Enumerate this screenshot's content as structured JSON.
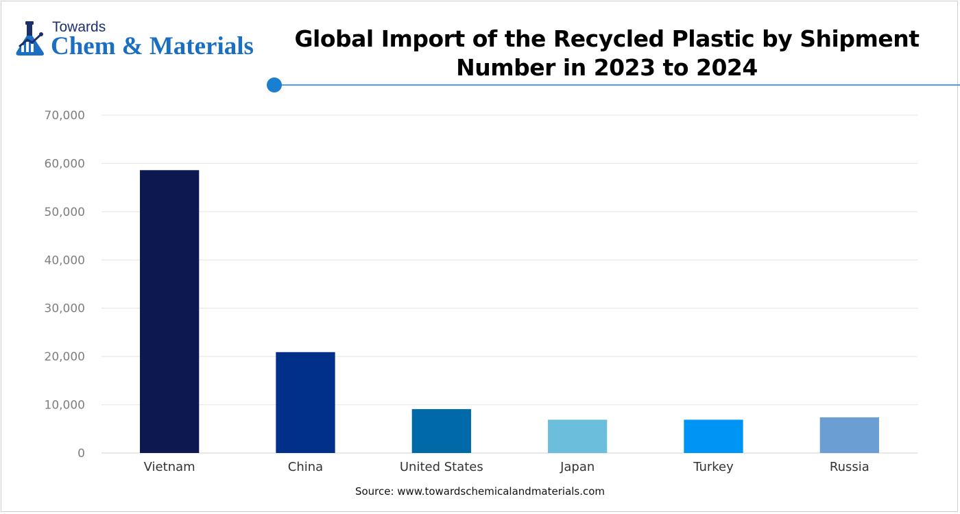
{
  "logo": {
    "line1": "Towards",
    "line2": "Chem & Materials"
  },
  "colors": {
    "brand_blue": "#1a6fc2",
    "brand_navy": "#1b2f6b",
    "accent_rule": "#1a7fd0"
  },
  "source": "Source: www.towardschemicalandmaterials.com",
  "chart_data": {
    "type": "bar",
    "title": "Global Import of the Recycled Plastic by Shipment Number in 2023 to 2024",
    "xlabel": "",
    "ylabel": "",
    "categories": [
      "Vietnam",
      "China",
      "United States",
      "Japan",
      "Turkey",
      "Russia"
    ],
    "values": [
      58600,
      20900,
      9100,
      6900,
      6900,
      7400
    ],
    "bar_colors": [
      "#0d1850",
      "#00308a",
      "#006aa8",
      "#6bbfdd",
      "#0095f5",
      "#6b9fd4"
    ],
    "ylim": [
      0,
      70000
    ],
    "yticks": [
      0,
      10000,
      20000,
      30000,
      40000,
      50000,
      60000,
      70000
    ],
    "ytick_labels": [
      "0",
      "10,000",
      "20,000",
      "30,000",
      "40,000",
      "50,000",
      "60,000",
      "70,000"
    ],
    "grid": true,
    "legend": "none"
  }
}
